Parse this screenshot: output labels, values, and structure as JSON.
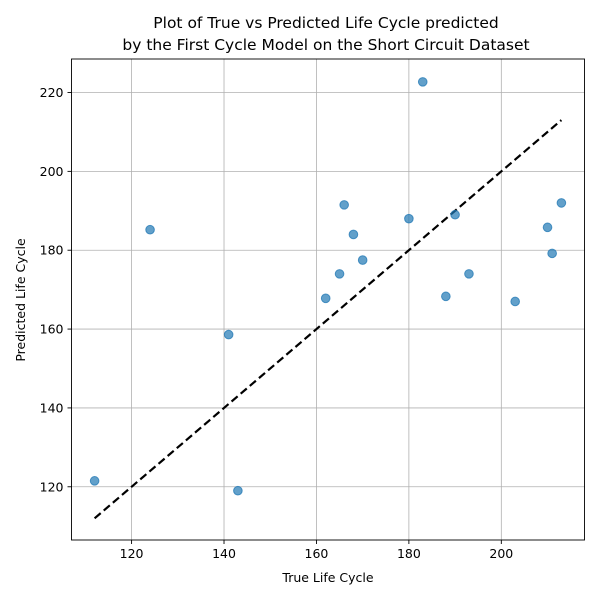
{
  "chart_data": {
    "type": "scatter",
    "title_line1": "Plot of True vs Predicted Life Cycle predicted",
    "title_line2": "by the First Cycle Model on the Short Circuit Dataset",
    "xlabel": "True Life Cycle",
    "ylabel": "Predicted Life Cycle",
    "xlim": [
      107,
      218
    ],
    "ylim": [
      106.5,
      228.5
    ],
    "xticks": [
      120,
      140,
      160,
      180,
      200
    ],
    "yticks": [
      120,
      140,
      160,
      180,
      200,
      220
    ],
    "grid": true,
    "point_color": "#1f77b4",
    "reference_line": {
      "x": [
        112,
        213
      ],
      "y": [
        112,
        213
      ],
      "style": "dashed",
      "color": "#000000"
    },
    "points": [
      {
        "x": 112,
        "y": 121.5
      },
      {
        "x": 124,
        "y": 185.2
      },
      {
        "x": 141,
        "y": 158.6
      },
      {
        "x": 143,
        "y": 119
      },
      {
        "x": 162,
        "y": 167.8
      },
      {
        "x": 165,
        "y": 174
      },
      {
        "x": 166,
        "y": 191.5
      },
      {
        "x": 168,
        "y": 184
      },
      {
        "x": 170,
        "y": 177.5
      },
      {
        "x": 180,
        "y": 188
      },
      {
        "x": 183,
        "y": 222.7
      },
      {
        "x": 188,
        "y": 168.3
      },
      {
        "x": 190,
        "y": 189
      },
      {
        "x": 193,
        "y": 174
      },
      {
        "x": 203,
        "y": 167
      },
      {
        "x": 210,
        "y": 185.8
      },
      {
        "x": 211,
        "y": 179.2
      },
      {
        "x": 213,
        "y": 192
      }
    ]
  }
}
